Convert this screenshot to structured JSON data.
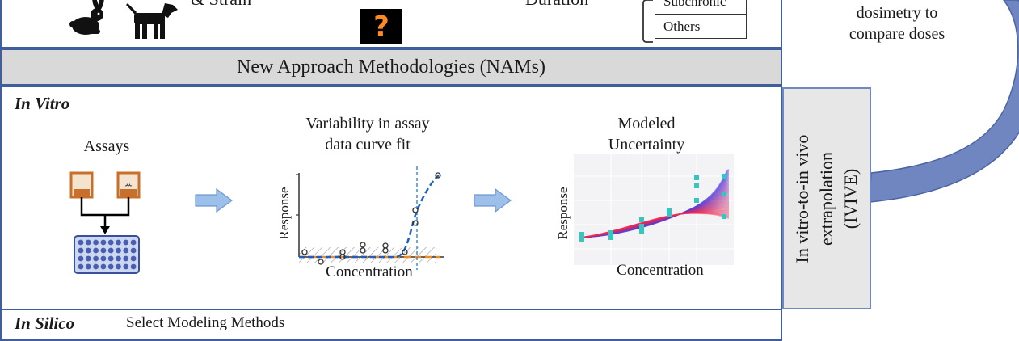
{
  "top": {
    "strain_text": "& Strain",
    "duration_text": "Duration",
    "question_mark": "?",
    "table_rows": [
      "Subchronic",
      "Others"
    ],
    "dosimetry_text": "dosimetry to\ncompare doses"
  },
  "nams": {
    "title": "New Approach Methodologies (NAMs)"
  },
  "in_vitro": {
    "heading": "In Vitro",
    "assays_label": "Assays",
    "variability_title": "Variability in assay\ndata curve fit",
    "modeled_title": "Modeled\nUncertainty",
    "y_axis_label": "Response",
    "x_axis_label": "Concentration"
  },
  "ivive": {
    "text": "In vitro-to-in vivo\nextrapolation\n(IVIVE)"
  },
  "in_silico": {
    "heading": "In Silico",
    "subtitle": "Select Modeling Methods"
  },
  "colors": {
    "frame": "#3f5e9e",
    "arrow": "#8eb4e3",
    "curve_arrow": "#6f86c0",
    "fit_blue": "#1f5fbf",
    "fit_orange": "#f08a24",
    "points_teal": "#35c6c1"
  }
}
